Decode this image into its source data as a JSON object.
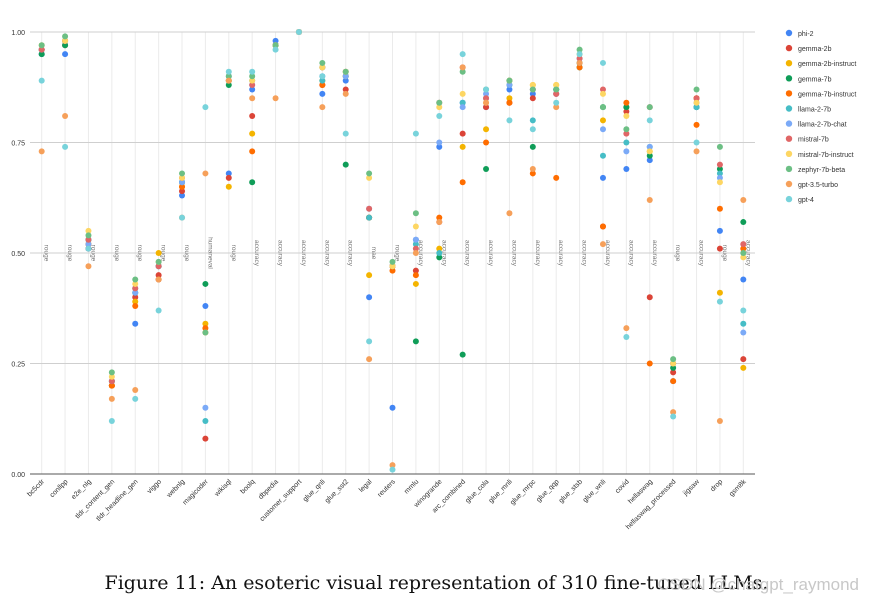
{
  "chart_data": {
    "type": "scatter",
    "ylim": [
      0,
      1
    ],
    "yticks": [
      "0.00",
      "0.25",
      "0.50",
      "0.75",
      "1.00"
    ],
    "grid": true,
    "legend_position": "right",
    "categories": [
      "bc5cdr",
      "conllpp",
      "e2e_nlg",
      "tldr_content_gen",
      "tldr_headline_gen",
      "viggo",
      "webnlg",
      "magicoder",
      "wikisql",
      "boolq",
      "dbpedia",
      "customer_support",
      "glue_qnli",
      "glue_sst2",
      "legal",
      "reuters",
      "mmlu",
      "winogrande",
      "arc_combined",
      "glue_cola",
      "glue_mnli",
      "glue_mrpc",
      "glue_qqp",
      "glue_stsb",
      "glue_wnli",
      "covid",
      "hellaswag",
      "hellaswag_processed",
      "jigsaw",
      "drop",
      "gsm8k"
    ],
    "metrics": [
      "rouge",
      "rouge",
      "rouge",
      "rouge",
      "rouge",
      "rouge",
      "rouge",
      "humaneval",
      "rouge",
      "accuracy",
      "accuracy",
      "accuracy",
      "accuracy",
      "accuracy",
      "mae",
      "rouge",
      "accuracy",
      "accuracy",
      "accuracy",
      "accuracy",
      "accuracy",
      "accuracy",
      "accuracy",
      "accuracy",
      "accuracy",
      "accuracy",
      "accuracy",
      "rouge",
      "accuracy",
      "rouge",
      "accuracy"
    ],
    "series": [
      {
        "name": "phi-2",
        "color": "#4285f4",
        "values": [
          0.95,
          0.95,
          0.51,
          0.2,
          0.34,
          0.44,
          0.63,
          0.38,
          0.68,
          0.87,
          0.98,
          1.0,
          0.86,
          0.89,
          0.4,
          0.15,
          0.53,
          0.74,
          0.84,
          0.83,
          0.87,
          0.86,
          0.87,
          0.93,
          0.67,
          0.69,
          0.71,
          0.21,
          0.83,
          0.55,
          0.44
        ]
      },
      {
        "name": "gemma-2b",
        "color": "#db4437",
        "values": [
          0.96,
          0.97,
          0.51,
          0.2,
          0.4,
          0.45,
          0.64,
          0.08,
          0.67,
          0.81,
          0.97,
          1.0,
          0.88,
          0.87,
          0.58,
          0.47,
          0.46,
          0.57,
          0.77,
          0.83,
          0.84,
          0.85,
          0.86,
          0.93,
          0.56,
          0.82,
          0.4,
          0.23,
          0.85,
          0.51,
          0.26
        ]
      },
      {
        "name": "gemma-2b-instruct",
        "color": "#f4b400",
        "values": [
          0.96,
          0.98,
          0.52,
          0.2,
          0.39,
          0.5,
          0.65,
          0.34,
          0.65,
          0.77,
          0.97,
          1.0,
          0.89,
          0.9,
          0.45,
          0.47,
          0.43,
          0.51,
          0.74,
          0.78,
          0.85,
          0.88,
          0.88,
          0.93,
          0.8,
          0.83,
          0.73,
          0.25,
          0.85,
          0.41,
          0.24
        ]
      },
      {
        "name": "gemma-7b",
        "color": "#0f9d58",
        "values": [
          0.95,
          0.97,
          0.53,
          0.21,
          0.41,
          0.47,
          0.66,
          0.43,
          0.88,
          0.66,
          0.97,
          1.0,
          0.92,
          0.7,
          0.58,
          0.47,
          0.3,
          0.49,
          0.27,
          0.69,
          0.88,
          0.74,
          0.87,
          0.92,
          0.83,
          0.83,
          0.72,
          0.24,
          0.83,
          0.69,
          0.57
        ]
      },
      {
        "name": "gemma-7b-instruct",
        "color": "#ff6d00",
        "values": [
          0.96,
          0.98,
          0.52,
          0.2,
          0.38,
          0.44,
          0.65,
          0.33,
          0.89,
          0.73,
          0.97,
          1.0,
          0.88,
          0.9,
          0.58,
          0.46,
          0.45,
          0.58,
          0.66,
          0.75,
          0.84,
          0.68,
          0.67,
          0.92,
          0.56,
          0.84,
          0.25,
          0.21,
          0.79,
          0.6,
          0.51
        ]
      },
      {
        "name": "llama-2-7b",
        "color": "#46bdc6",
        "values": [
          0.96,
          0.98,
          0.53,
          0.21,
          0.42,
          0.47,
          0.66,
          0.12,
          0.89,
          0.89,
          0.97,
          1.0,
          0.89,
          0.9,
          0.58,
          0.47,
          0.52,
          0.5,
          0.84,
          0.85,
          0.89,
          0.8,
          0.87,
          0.93,
          0.72,
          0.75,
          0.74,
          0.25,
          0.83,
          0.68,
          0.34
        ]
      },
      {
        "name": "llama-2-7b-chat",
        "color": "#7baaf7",
        "values": [
          0.96,
          0.98,
          0.52,
          0.21,
          0.41,
          0.47,
          0.66,
          0.15,
          0.9,
          0.88,
          0.97,
          1.0,
          0.9,
          0.9,
          0.6,
          0.47,
          0.53,
          0.75,
          0.83,
          0.86,
          0.88,
          0.87,
          0.86,
          0.94,
          0.78,
          0.73,
          0.74,
          0.25,
          0.84,
          0.67,
          0.32
        ]
      },
      {
        "name": "mistral-7b",
        "color": "#e06666",
        "values": [
          0.96,
          0.98,
          0.53,
          0.21,
          0.42,
          0.47,
          0.67,
          0.32,
          0.89,
          0.88,
          0.97,
          1.0,
          0.92,
          0.91,
          0.6,
          0.47,
          0.51,
          0.84,
          0.92,
          0.85,
          0.89,
          0.87,
          0.86,
          0.94,
          0.87,
          0.77,
          0.83,
          0.25,
          0.85,
          0.7,
          0.52
        ]
      },
      {
        "name": "mistral-7b-instruct",
        "color": "#fdd663",
        "values": [
          0.97,
          0.98,
          0.55,
          0.22,
          0.43,
          0.48,
          0.67,
          0.32,
          0.89,
          0.89,
          0.97,
          1.0,
          0.92,
          0.91,
          0.67,
          0.47,
          0.56,
          0.83,
          0.86,
          0.84,
          0.89,
          0.88,
          0.88,
          0.95,
          0.86,
          0.81,
          0.73,
          0.25,
          0.84,
          0.66,
          0.49
        ]
      },
      {
        "name": "zephyr-7b-beta",
        "color": "#6cbf84",
        "values": [
          0.97,
          0.99,
          0.54,
          0.23,
          0.44,
          0.48,
          0.68,
          0.32,
          0.9,
          0.9,
          0.97,
          1.0,
          0.93,
          0.91,
          0.68,
          0.48,
          0.59,
          0.84,
          0.91,
          0.87,
          0.89,
          0.87,
          0.87,
          0.96,
          0.83,
          0.78,
          0.83,
          0.26,
          0.87,
          0.74,
          0.5
        ]
      },
      {
        "name": "gpt-3.5-turbo",
        "color": "#f6a05a",
        "values": [
          0.73,
          0.81,
          0.47,
          0.17,
          0.19,
          0.44,
          0.58,
          0.68,
          0.89,
          0.85,
          0.85,
          1.0,
          0.83,
          0.86,
          0.26,
          0.02,
          0.5,
          0.57,
          0.92,
          0.84,
          0.59,
          0.69,
          0.83,
          0.93,
          0.52,
          0.33,
          0.62,
          0.14,
          0.73,
          0.12,
          0.62
        ]
      },
      {
        "name": "gpt-4",
        "color": "#78d3db",
        "values": [
          0.89,
          0.74,
          0.51,
          0.12,
          0.17,
          0.37,
          0.58,
          0.83,
          0.91,
          0.91,
          0.96,
          1.0,
          0.9,
          0.77,
          0.3,
          0.01,
          0.77,
          0.81,
          0.95,
          0.87,
          0.8,
          0.78,
          0.84,
          0.95,
          0.93,
          0.31,
          0.8,
          0.13,
          0.75,
          0.39,
          0.37
        ]
      }
    ]
  },
  "caption": "Figure 11: An esoteric visual representation of 310 fine-tuned LLMs.",
  "watermark": "CSDN @chatgpt_raymond"
}
